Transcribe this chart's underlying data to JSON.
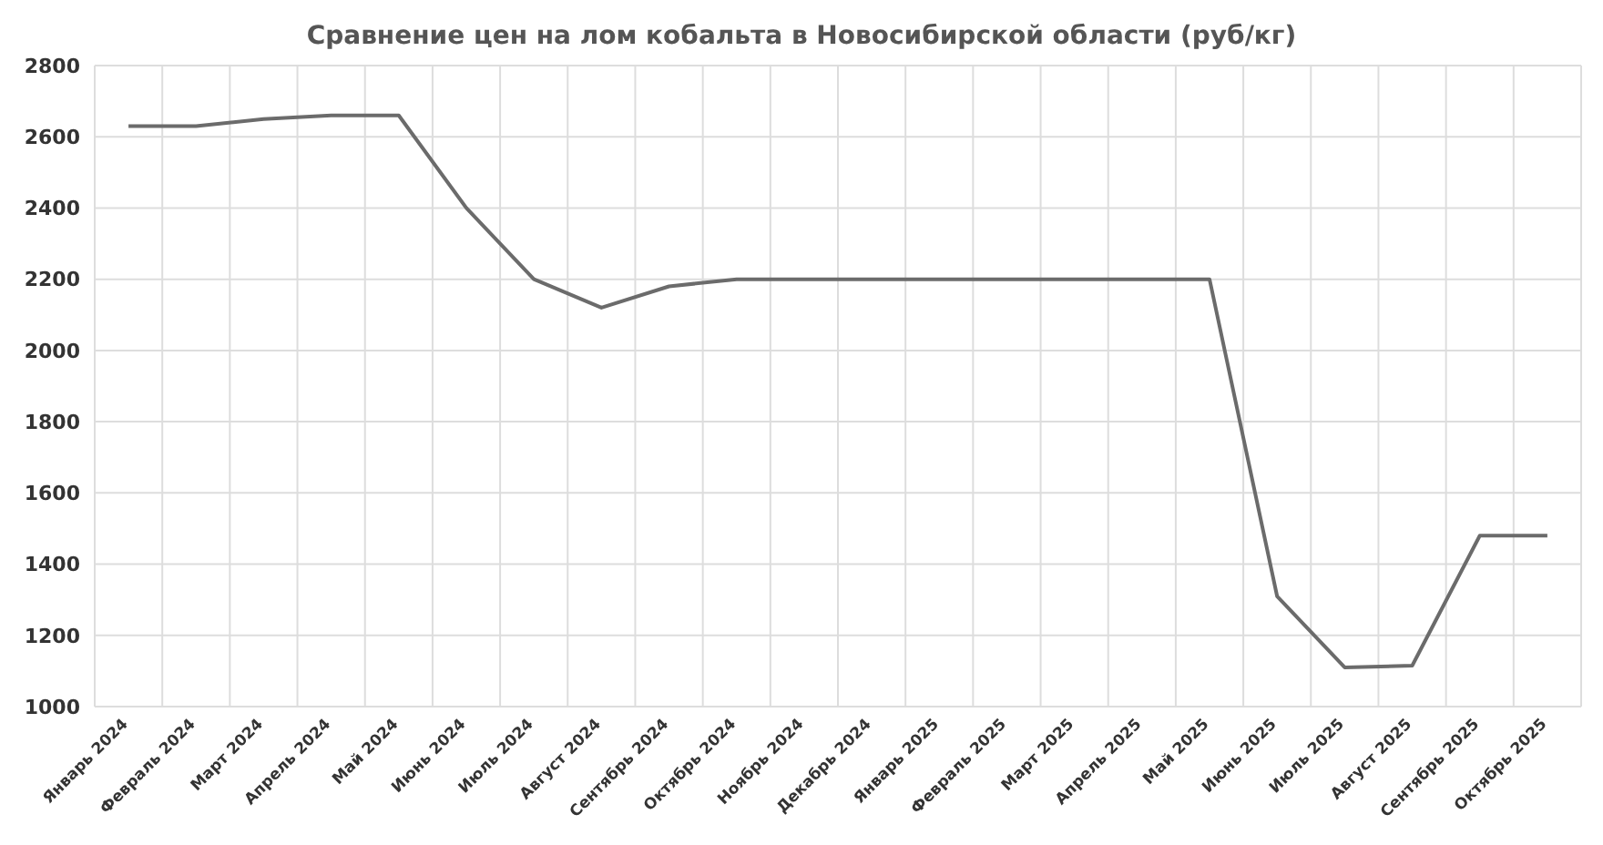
{
  "chart_data": {
    "type": "line",
    "title": "Сравнение цен на лом кобальта в Новосибирской области (руб/кг)",
    "categories": [
      "Январь 2024",
      "Февраль 2024",
      "Март 2024",
      "Апрель 2024",
      "Май 2024",
      "Июнь 2024",
      "Июль 2024",
      "Август 2024",
      "Сентябрь 2024",
      "Октябрь 2024",
      "Ноябрь 2024",
      "Декабрь 2024",
      "Январь 2025",
      "Февраль 2025",
      "Март 2025",
      "Апрель 2025",
      "Май 2025",
      "Июнь 2025",
      "Июль 2025",
      "Август 2025",
      "Сентябрь 2025",
      "Октябрь 2025"
    ],
    "series": [
      {
        "color": "#6b6b6b",
        "values": [
          2630,
          2630,
          2650,
          2660,
          2660,
          2400,
          2200,
          2120,
          2180,
          2200,
          2200,
          2200,
          2200,
          2200,
          2200,
          2200,
          2200,
          1310,
          1110,
          1115,
          1480,
          1480
        ]
      }
    ],
    "ylim": [
      1000,
      2800
    ],
    "yticks": [
      1000,
      1200,
      1400,
      1600,
      1800,
      2000,
      2200,
      2400,
      2600,
      2800
    ],
    "grid": true,
    "legend": false,
    "marker": "none",
    "line_style": "solid"
  }
}
